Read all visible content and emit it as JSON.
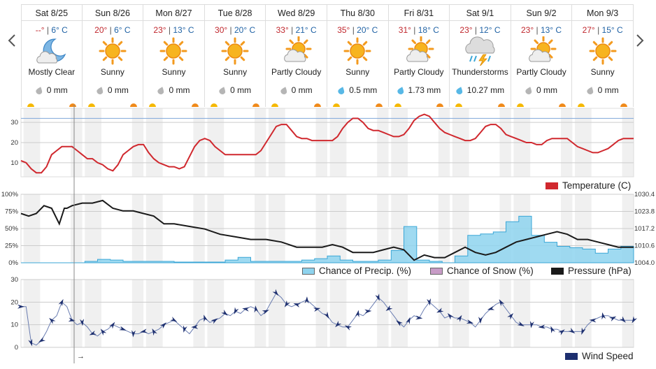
{
  "days": [
    {
      "name": "Sat 8/25",
      "hi": "--°",
      "lo": "6° C",
      "icon": "moon-cloud",
      "cond": "Mostly Clear",
      "precip": "0 mm",
      "rain": false
    },
    {
      "name": "Sun 8/26",
      "hi": "20°",
      "lo": "6° C",
      "icon": "sun",
      "cond": "Sunny",
      "precip": "0 mm",
      "rain": false
    },
    {
      "name": "Mon 8/27",
      "hi": "23°",
      "lo": "13° C",
      "icon": "sun",
      "cond": "Sunny",
      "precip": "0 mm",
      "rain": false
    },
    {
      "name": "Tue 8/28",
      "hi": "30°",
      "lo": "20° C",
      "icon": "sun",
      "cond": "Sunny",
      "precip": "0 mm",
      "rain": false
    },
    {
      "name": "Wed 8/29",
      "hi": "33°",
      "lo": "21° C",
      "icon": "sun-cloud",
      "cond": "Partly Cloudy",
      "precip": "0 mm",
      "rain": false
    },
    {
      "name": "Thu 8/30",
      "hi": "35°",
      "lo": "20° C",
      "icon": "sun",
      "cond": "Sunny",
      "precip": "0.5 mm",
      "rain": true
    },
    {
      "name": "Fri 8/31",
      "hi": "31°",
      "lo": "18° C",
      "icon": "sun-cloud",
      "cond": "Partly Cloudy",
      "precip": "1.73 mm",
      "rain": true
    },
    {
      "name": "Sat 9/1",
      "hi": "23°",
      "lo": "12° C",
      "icon": "storm",
      "cond": "Thunderstorms",
      "precip": "10.27 mm",
      "rain": true
    },
    {
      "name": "Sun 9/2",
      "hi": "23°",
      "lo": "13° C",
      "icon": "sun-cloud",
      "cond": "Partly Cloudy",
      "precip": "0 mm",
      "rain": false
    },
    {
      "name": "Mon 9/3",
      "hi": "27°",
      "lo": "15° C",
      "icon": "sun",
      "cond": "Sunny",
      "precip": "0 mm",
      "rain": false
    }
  ],
  "colors": {
    "temp": "#d0282e",
    "precip": "#8ed3ee",
    "precip_edge": "#3aa6d6",
    "snow": "#c79bc6",
    "pressure": "#1a1a1a",
    "wind": "#1d2f6f",
    "grid": "#cccccc",
    "shade": "#f0f0f0",
    "ref": "#7fa7d9"
  },
  "legends": {
    "temperature": "Temperature (C)",
    "precip": "Chance of Precip. (%)",
    "snow": "Chance of Snow (%)",
    "pressure": "Pressure (hPa)",
    "wind": "Wind Speed"
  },
  "timebar_label": "→",
  "chart_data": [
    {
      "type": "line",
      "name": "temperature",
      "ylim": [
        3,
        37
      ],
      "yticks": [
        10,
        20,
        30
      ],
      "ref_line": 32,
      "x": [
        0,
        2,
        4,
        6,
        8,
        10,
        12,
        14,
        16,
        18,
        20,
        22,
        24,
        26,
        28,
        30,
        32,
        34,
        36,
        38,
        40,
        42,
        44,
        46,
        48,
        50,
        52,
        54,
        56,
        58,
        60,
        62,
        64,
        66,
        68,
        70,
        72,
        74,
        76,
        78,
        80,
        82,
        84,
        86,
        88,
        90,
        92,
        94,
        96,
        98,
        100,
        102,
        104,
        106,
        108,
        110,
        112,
        114,
        116,
        118,
        120,
        122,
        124,
        126,
        128,
        130,
        132,
        134,
        136,
        138,
        140,
        142,
        144,
        146,
        148,
        150,
        152,
        154,
        156,
        158,
        160,
        162,
        164,
        166,
        168,
        170,
        172,
        174,
        176,
        178,
        180,
        182,
        184,
        186,
        188,
        190,
        192,
        194,
        196,
        198,
        200,
        202,
        204,
        206,
        208,
        210,
        212,
        214,
        216,
        218,
        220,
        222,
        224,
        226,
        228,
        230,
        232,
        234,
        236,
        238,
        240
      ],
      "series": [
        {
          "values": [
            11,
            10,
            7,
            5,
            5,
            8,
            14,
            16,
            18,
            18,
            18,
            16,
            14,
            12,
            12,
            10,
            9,
            7,
            6,
            9,
            14,
            16,
            18,
            19,
            19,
            15,
            12,
            10,
            9,
            8,
            8,
            7,
            8,
            13,
            18,
            21,
            22,
            21,
            18,
            16,
            14,
            14,
            14,
            14,
            14,
            14,
            14,
            16,
            20,
            24,
            28,
            29,
            29,
            26,
            23,
            22,
            22,
            21,
            21,
            21,
            21,
            21,
            23,
            27,
            30,
            32,
            32,
            30,
            27,
            26,
            26,
            25,
            24,
            23,
            23,
            24,
            27,
            31,
            33,
            34,
            33,
            30,
            27,
            25,
            24,
            23,
            22,
            21,
            21,
            22,
            25,
            28,
            29,
            29,
            27,
            24,
            23,
            22,
            21,
            20,
            20,
            19,
            19,
            21,
            22,
            22,
            22,
            22,
            20,
            18,
            17,
            16,
            15,
            15,
            16,
            17,
            19,
            21,
            22,
            22,
            22
          ]
        }
      ]
    },
    {
      "type": "area",
      "name": "precip-pressure",
      "ylim": [
        0,
        100
      ],
      "yticks": [
        "0%",
        "25%",
        "50%",
        "75%",
        "100%"
      ],
      "pressure_ticks": [
        "1004.0",
        "1010.6",
        "1017.2",
        "1023.8",
        "1030.4"
      ],
      "pressure_lim": [
        1004.0,
        1030.4
      ],
      "precip": {
        "x": [
          0,
          20,
          25,
          30,
          35,
          40,
          45,
          50,
          55,
          60,
          65,
          70,
          75,
          80,
          85,
          90,
          95,
          100,
          105,
          110,
          115,
          120,
          125,
          130,
          135,
          140,
          145,
          150,
          155,
          160,
          165,
          170,
          175,
          180,
          185,
          190,
          195,
          200,
          205,
          210,
          215,
          220,
          225,
          230,
          235,
          240
        ],
        "values": [
          0,
          0,
          2,
          5,
          4,
          2,
          2,
          2,
          2,
          1,
          1,
          1,
          1,
          4,
          8,
          2,
          2,
          2,
          2,
          4,
          6,
          10,
          4,
          2,
          2,
          4,
          18,
          53,
          4,
          2,
          0,
          10,
          40,
          42,
          45,
          60,
          68,
          40,
          30,
          24,
          22,
          20,
          14,
          20,
          24,
          10
        ]
      },
      "pressure": {
        "x": [
          0,
          3,
          6,
          9,
          12,
          15,
          17,
          18,
          20,
          24,
          28,
          32,
          36,
          40,
          44,
          48,
          52,
          56,
          60,
          66,
          72,
          78,
          84,
          90,
          96,
          102,
          108,
          114,
          118,
          122,
          126,
          130,
          134,
          138,
          142,
          146,
          150,
          154,
          158,
          162,
          166,
          170,
          174,
          178,
          182,
          186,
          190,
          194,
          198,
          202,
          206,
          210,
          214,
          218,
          222,
          226,
          230,
          234,
          238,
          240
        ],
        "values": [
          1023,
          1022,
          1023,
          1026,
          1025,
          1019,
          1025,
          1025,
          1026,
          1027,
          1027,
          1028,
          1025,
          1024,
          1024,
          1023,
          1022,
          1019,
          1019,
          1018,
          1017,
          1015,
          1014,
          1013,
          1013,
          1012,
          1010,
          1010,
          1010,
          1011,
          1010,
          1008,
          1008,
          1008,
          1009,
          1010,
          1009,
          1005,
          1007,
          1006,
          1006,
          1008,
          1010,
          1008,
          1007,
          1008,
          1010,
          1012,
          1013,
          1014,
          1015,
          1016,
          1015,
          1013,
          1013,
          1012,
          1011,
          1010,
          1010,
          1010
        ]
      }
    },
    {
      "type": "line",
      "name": "wind",
      "ylim": [
        0,
        30
      ],
      "yticks": [
        0,
        10,
        20,
        30
      ],
      "x": [
        0,
        2,
        4,
        6,
        8,
        10,
        12,
        14,
        16,
        18,
        20,
        22,
        24,
        26,
        28,
        30,
        32,
        34,
        36,
        38,
        40,
        42,
        44,
        46,
        48,
        50,
        52,
        54,
        56,
        58,
        60,
        62,
        64,
        66,
        68,
        70,
        72,
        74,
        76,
        78,
        80,
        82,
        84,
        86,
        88,
        90,
        92,
        94,
        96,
        98,
        100,
        102,
        104,
        106,
        108,
        110,
        112,
        114,
        116,
        118,
        120,
        122,
        124,
        126,
        128,
        130,
        132,
        134,
        136,
        138,
        140,
        142,
        144,
        146,
        148,
        150,
        152,
        154,
        156,
        158,
        160,
        162,
        164,
        166,
        168,
        170,
        172,
        174,
        176,
        178,
        180,
        182,
        184,
        186,
        188,
        190,
        192,
        194,
        196,
        198,
        200,
        202,
        204,
        206,
        208,
        210,
        212,
        214,
        216,
        218,
        220,
        222,
        224,
        226,
        228,
        230,
        232,
        234,
        236,
        238,
        240
      ],
      "series": [
        {
          "values": [
            18,
            18,
            2,
            1,
            3,
            7,
            12,
            14,
            20,
            18,
            12,
            10,
            11,
            9,
            6,
            5,
            7,
            8,
            10,
            9,
            8,
            7,
            6,
            6,
            7,
            6,
            7,
            8,
            10,
            11,
            12,
            10,
            8,
            6,
            9,
            12,
            13,
            11,
            12,
            13,
            15,
            14,
            16,
            15,
            17,
            18,
            17,
            14,
            16,
            20,
            24,
            22,
            19,
            18,
            19,
            20,
            21,
            19,
            17,
            15,
            14,
            11,
            10,
            9,
            9,
            12,
            15,
            14,
            16,
            19,
            22,
            20,
            17,
            14,
            11,
            9,
            12,
            14,
            13,
            17,
            20,
            18,
            16,
            13,
            14,
            13,
            13,
            12,
            11,
            9,
            12,
            15,
            17,
            19,
            20,
            17,
            14,
            11,
            10,
            10,
            10,
            10,
            9,
            9,
            8,
            8,
            7,
            7,
            7,
            7,
            7,
            10,
            12,
            13,
            14,
            14,
            13,
            12,
            12,
            12,
            12
          ]
        }
      ]
    }
  ]
}
